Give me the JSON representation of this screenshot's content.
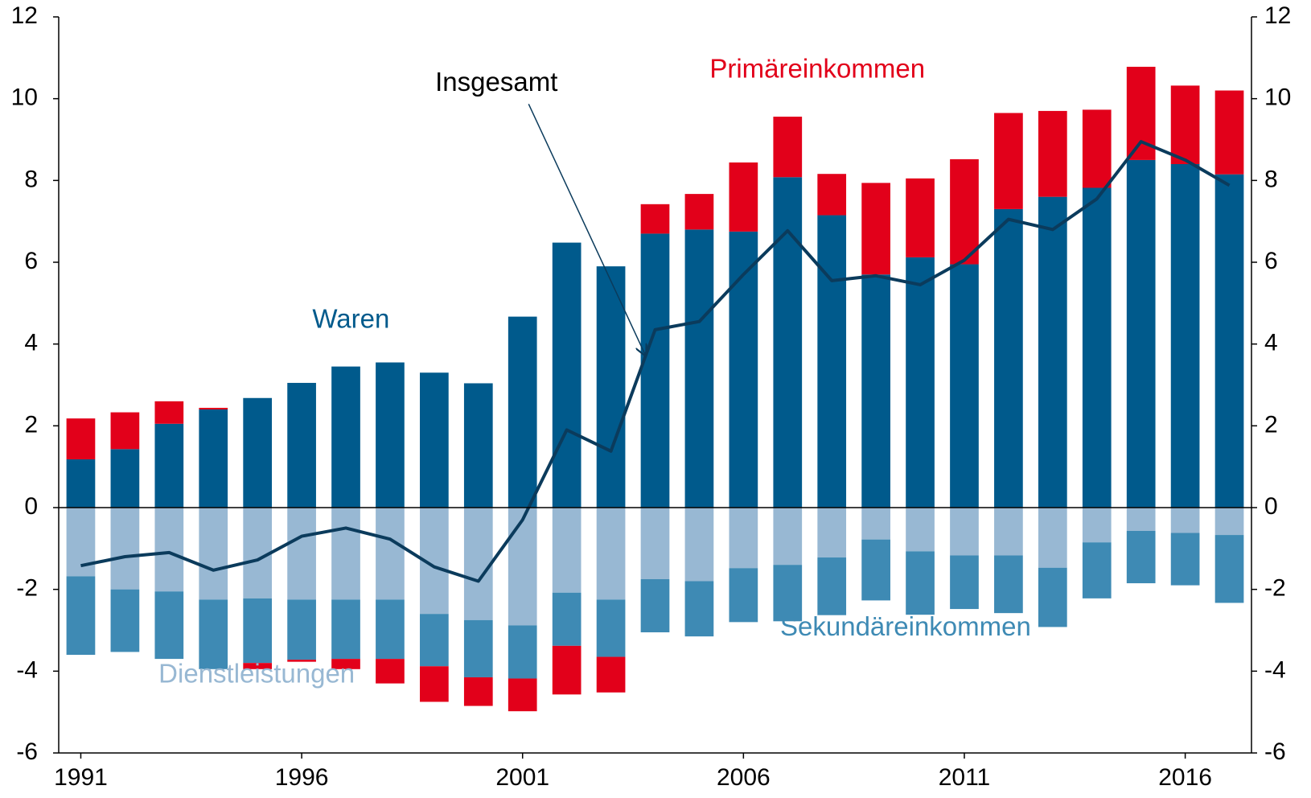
{
  "chart_data": {
    "type": "bar",
    "x": [
      1991,
      1992,
      1993,
      1994,
      1995,
      1996,
      1997,
      1998,
      1999,
      2000,
      2001,
      2002,
      2003,
      2004,
      2005,
      2006,
      2007,
      2008,
      2009,
      2010,
      2011,
      2012,
      2013,
      2014,
      2015,
      2016,
      2017
    ],
    "xlim": [
      1990.5,
      2017.5
    ],
    "xticks": [
      1991,
      1996,
      2001,
      2006,
      2011,
      2016
    ],
    "ylim": [
      -6,
      12
    ],
    "yticks": [
      -6,
      -4,
      -2,
      0,
      2,
      4,
      6,
      8,
      10,
      12
    ],
    "y2lim": [
      -6,
      12
    ],
    "y2ticks": [
      -6,
      -4,
      -2,
      0,
      2,
      4,
      6,
      8,
      10,
      12
    ],
    "stacked": true,
    "series": [
      {
        "name": "Waren",
        "color": "#005a8c",
        "type": "bar",
        "values": [
          1.18,
          1.43,
          2.05,
          2.4,
          2.68,
          3.05,
          3.45,
          3.55,
          3.3,
          3.04,
          4.67,
          6.48,
          5.9,
          6.7,
          6.8,
          6.75,
          8.08,
          7.15,
          5.7,
          6.12,
          5.95,
          7.3,
          7.6,
          7.82,
          8.5,
          8.4,
          8.15
        ]
      },
      {
        "name": "Dienstleistungen",
        "color": "#98b8d3",
        "type": "bar",
        "values": [
          -1.68,
          -2.0,
          -2.05,
          -2.25,
          -2.22,
          -2.25,
          -2.25,
          -2.25,
          -2.6,
          -2.75,
          -2.88,
          -2.08,
          -2.25,
          -1.75,
          -1.8,
          -1.48,
          -1.4,
          -1.22,
          -0.78,
          -1.07,
          -1.17,
          -1.17,
          -1.47,
          -0.85,
          -0.57,
          -0.62,
          -0.67
        ]
      },
      {
        "name": "Sekundäreinkommen",
        "color": "#3e8ab4",
        "type": "bar",
        "values": [
          -1.92,
          -1.53,
          -1.65,
          -1.7,
          -1.58,
          -1.47,
          -1.45,
          -1.45,
          -1.28,
          -1.4,
          -1.3,
          -1.3,
          -1.4,
          -1.3,
          -1.35,
          -1.32,
          -1.38,
          -1.41,
          -1.49,
          -1.55,
          -1.31,
          -1.41,
          -1.45,
          -1.37,
          -1.28,
          -1.28,
          -1.66
        ]
      },
      {
        "name": "Primäreinkommen",
        "color": "#e2001a",
        "type": "bar",
        "values": [
          1.0,
          0.9,
          0.55,
          0.04,
          -0.15,
          -0.05,
          -0.25,
          -0.6,
          -0.87,
          -0.7,
          -0.8,
          -1.19,
          -0.87,
          0.72,
          0.87,
          1.69,
          1.48,
          1.01,
          2.24,
          1.93,
          2.57,
          2.35,
          2.1,
          1.91,
          2.28,
          1.92,
          2.05
        ]
      },
      {
        "name": "Insgesamt",
        "color": "#0b3b5c",
        "type": "line",
        "values": [
          -1.42,
          -1.2,
          -1.1,
          -1.53,
          -1.28,
          -0.7,
          -0.5,
          -0.77,
          -1.45,
          -1.8,
          -0.3,
          1.9,
          1.38,
          4.35,
          4.55,
          5.7,
          6.77,
          5.55,
          5.67,
          5.45,
          6.05,
          7.05,
          6.8,
          7.55,
          8.95,
          8.5,
          7.88
        ]
      }
    ]
  }
}
